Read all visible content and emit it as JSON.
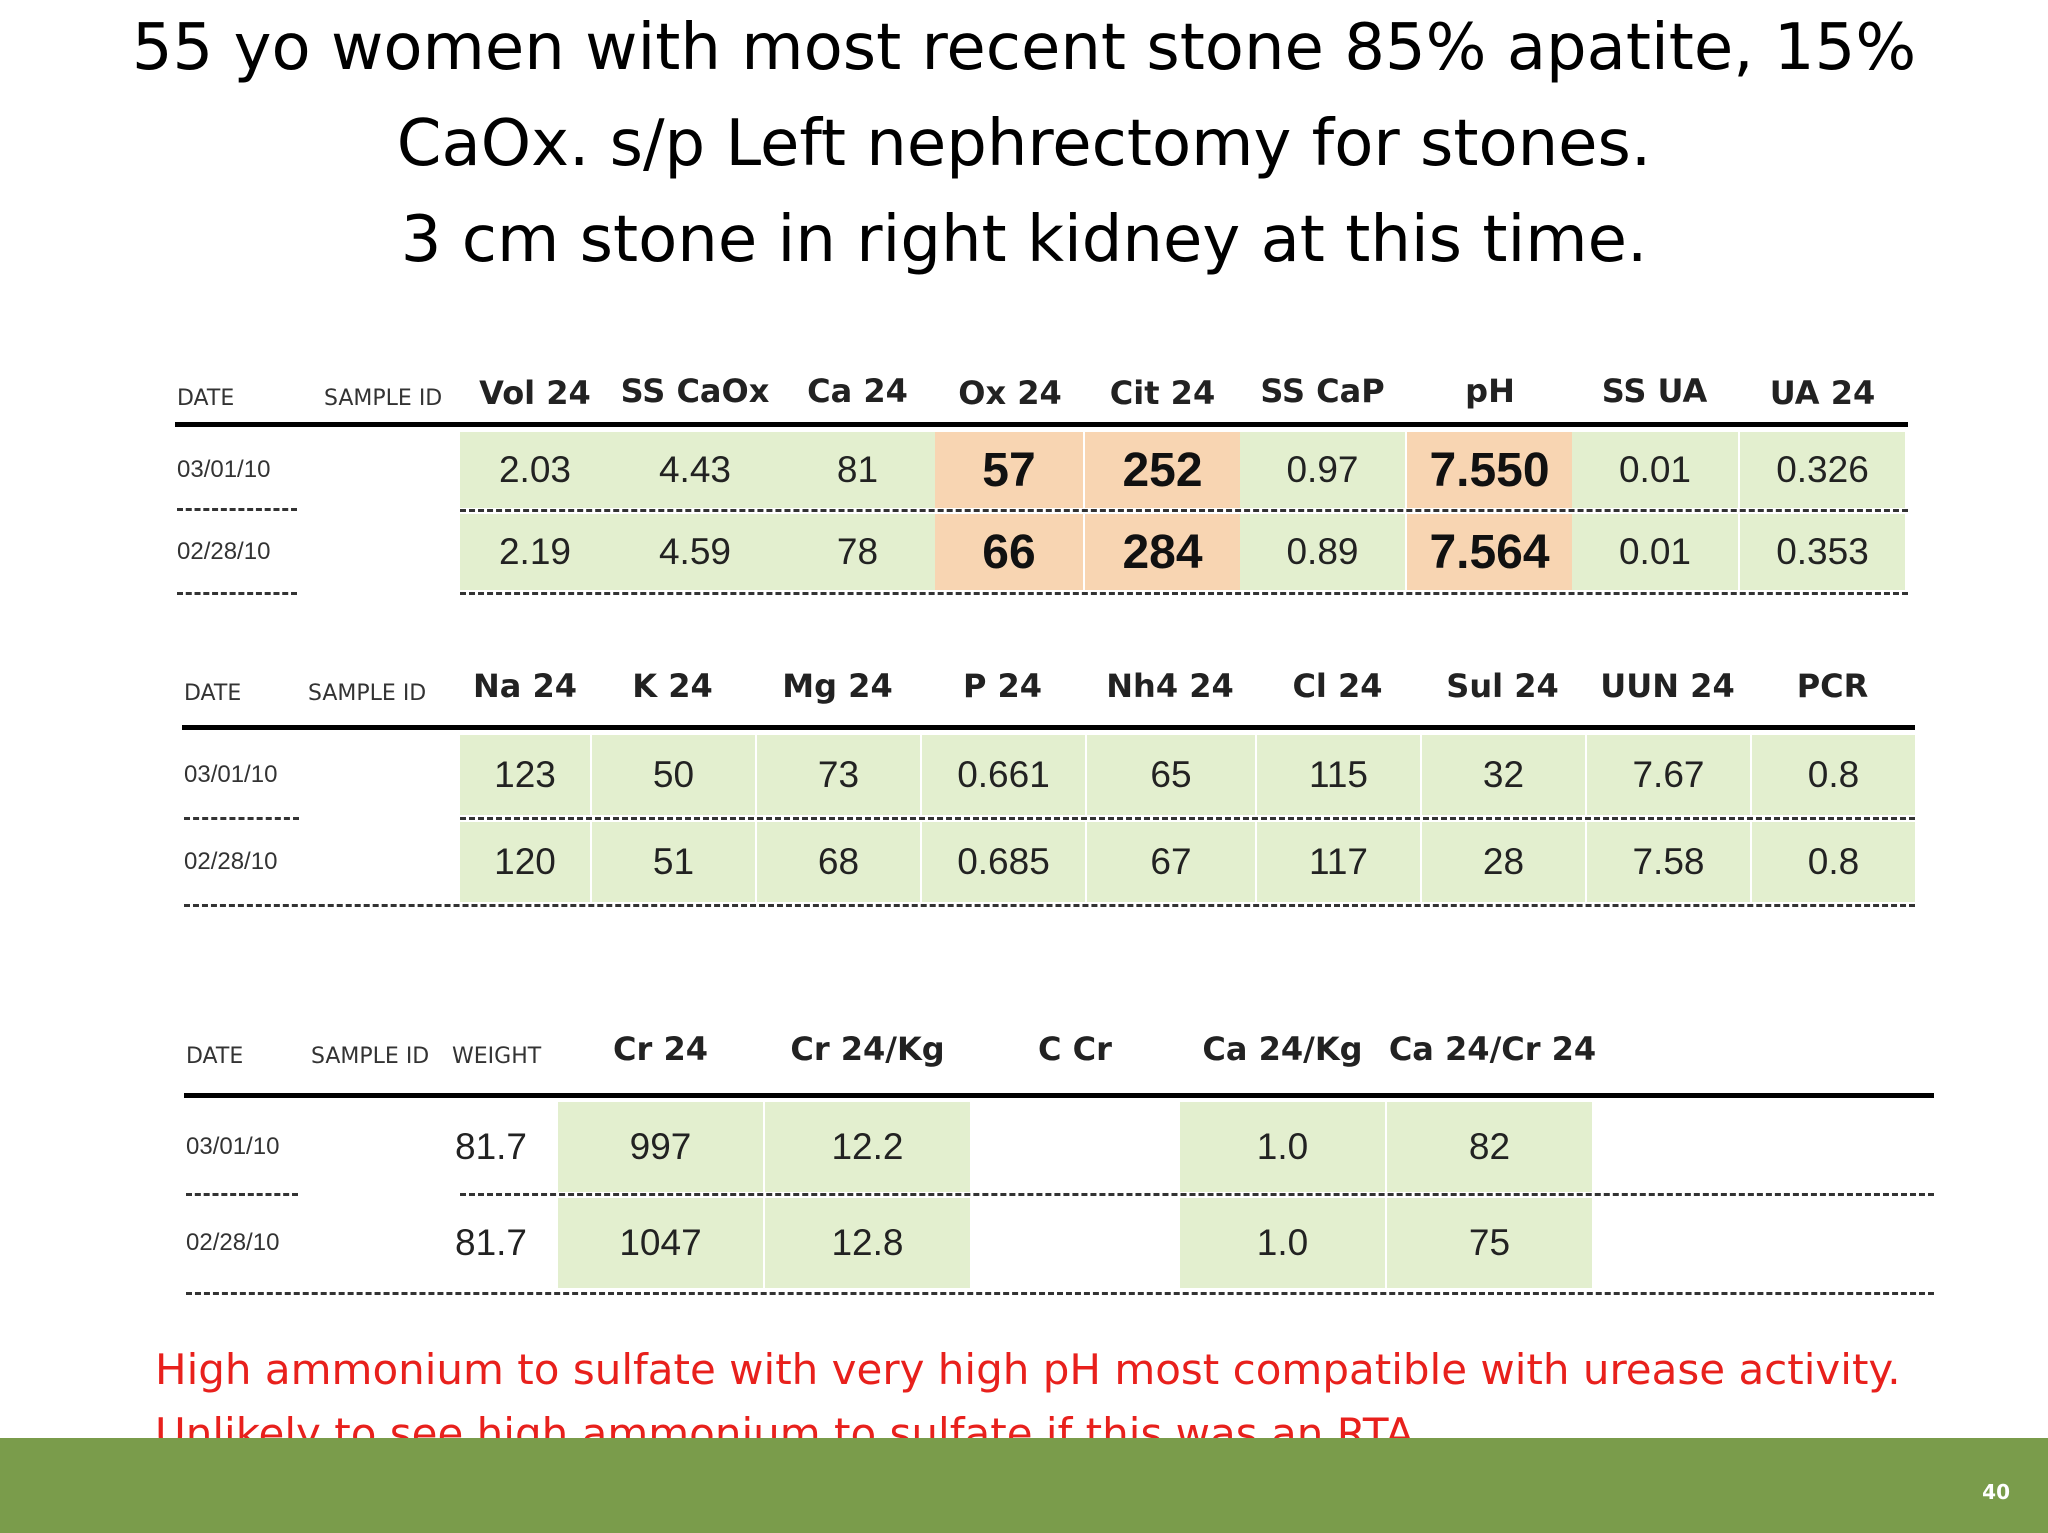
{
  "slide": {
    "title_lines": [
      "55 yo women with most recent stone 85% apatite, 15%",
      "CaOx. s/p Left nephrectomy for stones.",
      "3 cm stone in right kidney at this time."
    ],
    "note_lines": [
      "High ammonium to sulfate with very high pH most compatible with urease activity.",
      "Unlikely to see high ammonium to sulfate if this was an RTA"
    ],
    "page_number": "40"
  },
  "colors": {
    "highlight_green": "#e3efcf",
    "highlight_orange": "#f8d5b2",
    "note_red": "#e8201c",
    "footer_green": "#7a9c4b"
  },
  "table1": {
    "headers": [
      "DATE",
      "SAMPLE ID",
      "Vol 24",
      "SS CaOx",
      "Ca 24",
      "Ox 24",
      "Cit 24",
      "SS CaP",
      "pH",
      "SS UA",
      "UA 24"
    ],
    "rows": [
      {
        "date": "03/01/10",
        "values": [
          "2.03",
          "4.43",
          "81",
          "57",
          "252",
          "0.97",
          "7.550",
          "0.01",
          "0.326"
        ]
      },
      {
        "date": "02/28/10",
        "values": [
          "2.19",
          "4.59",
          "78",
          "66",
          "284",
          "0.89",
          "7.564",
          "0.01",
          "0.353"
        ]
      }
    ]
  },
  "table2": {
    "headers": [
      "DATE",
      "SAMPLE ID",
      "Na 24",
      "K 24",
      "Mg 24",
      "P 24",
      "Nh4 24",
      "Cl 24",
      "Sul 24",
      "UUN 24",
      "PCR"
    ],
    "rows": [
      {
        "date": "03/01/10",
        "values": [
          "123",
          "50",
          "73",
          "0.661",
          "65",
          "115",
          "32",
          "7.67",
          "0.8"
        ]
      },
      {
        "date": "02/28/10",
        "values": [
          "120",
          "51",
          "68",
          "0.685",
          "67",
          "117",
          "28",
          "7.58",
          "0.8"
        ]
      }
    ]
  },
  "table3": {
    "headers": [
      "DATE",
      "SAMPLE ID",
      "WEIGHT",
      "Cr 24",
      "Cr 24/Kg",
      "C Cr",
      "Ca 24/Kg",
      "Ca 24/Cr 24"
    ],
    "rows": [
      {
        "date": "03/01/10",
        "weight": "81.7",
        "values": [
          "997",
          "12.2",
          "",
          "1.0",
          "82"
        ]
      },
      {
        "date": "02/28/10",
        "weight": "81.7",
        "values": [
          "1047",
          "12.8",
          "",
          "1.0",
          "75"
        ]
      }
    ]
  }
}
